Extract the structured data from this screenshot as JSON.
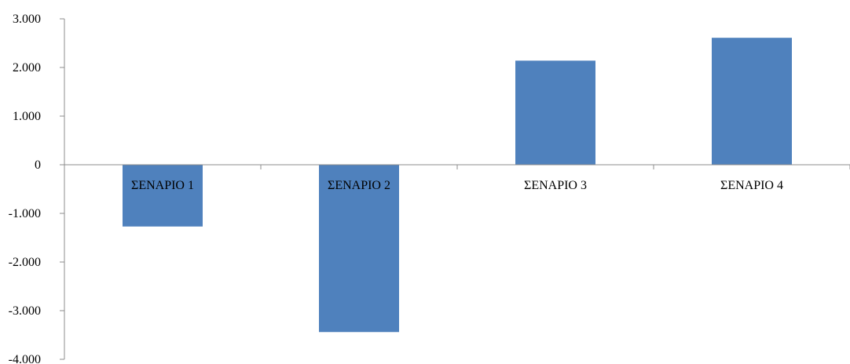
{
  "chart_data": {
    "type": "bar",
    "title": "",
    "xlabel": "",
    "ylabel": "",
    "categories": [
      "ΣΕΝΑΡΙΟ 1",
      "ΣΕΝΑΡΙΟ 2",
      "ΣΕΝΑΡΙΟ 3",
      "ΣΕΝΑΡΙΟ 4"
    ],
    "series": [
      {
        "values": [
          -1270,
          -3440,
          2140,
          2610
        ]
      }
    ],
    "ylim": [
      -4000,
      3000
    ],
    "yticks": [
      3000,
      2000,
      1000,
      0,
      -1000,
      -2000,
      -3000,
      -4000
    ],
    "ytick_labels": [
      "3.000",
      "2.000",
      "1.000",
      "0",
      "-1.000",
      "-2.000",
      "-3.000",
      "-4.000"
    ],
    "grid": false,
    "legend": "none",
    "bar_color": "#4f81bd",
    "axis_color": "#8c8c8c"
  }
}
